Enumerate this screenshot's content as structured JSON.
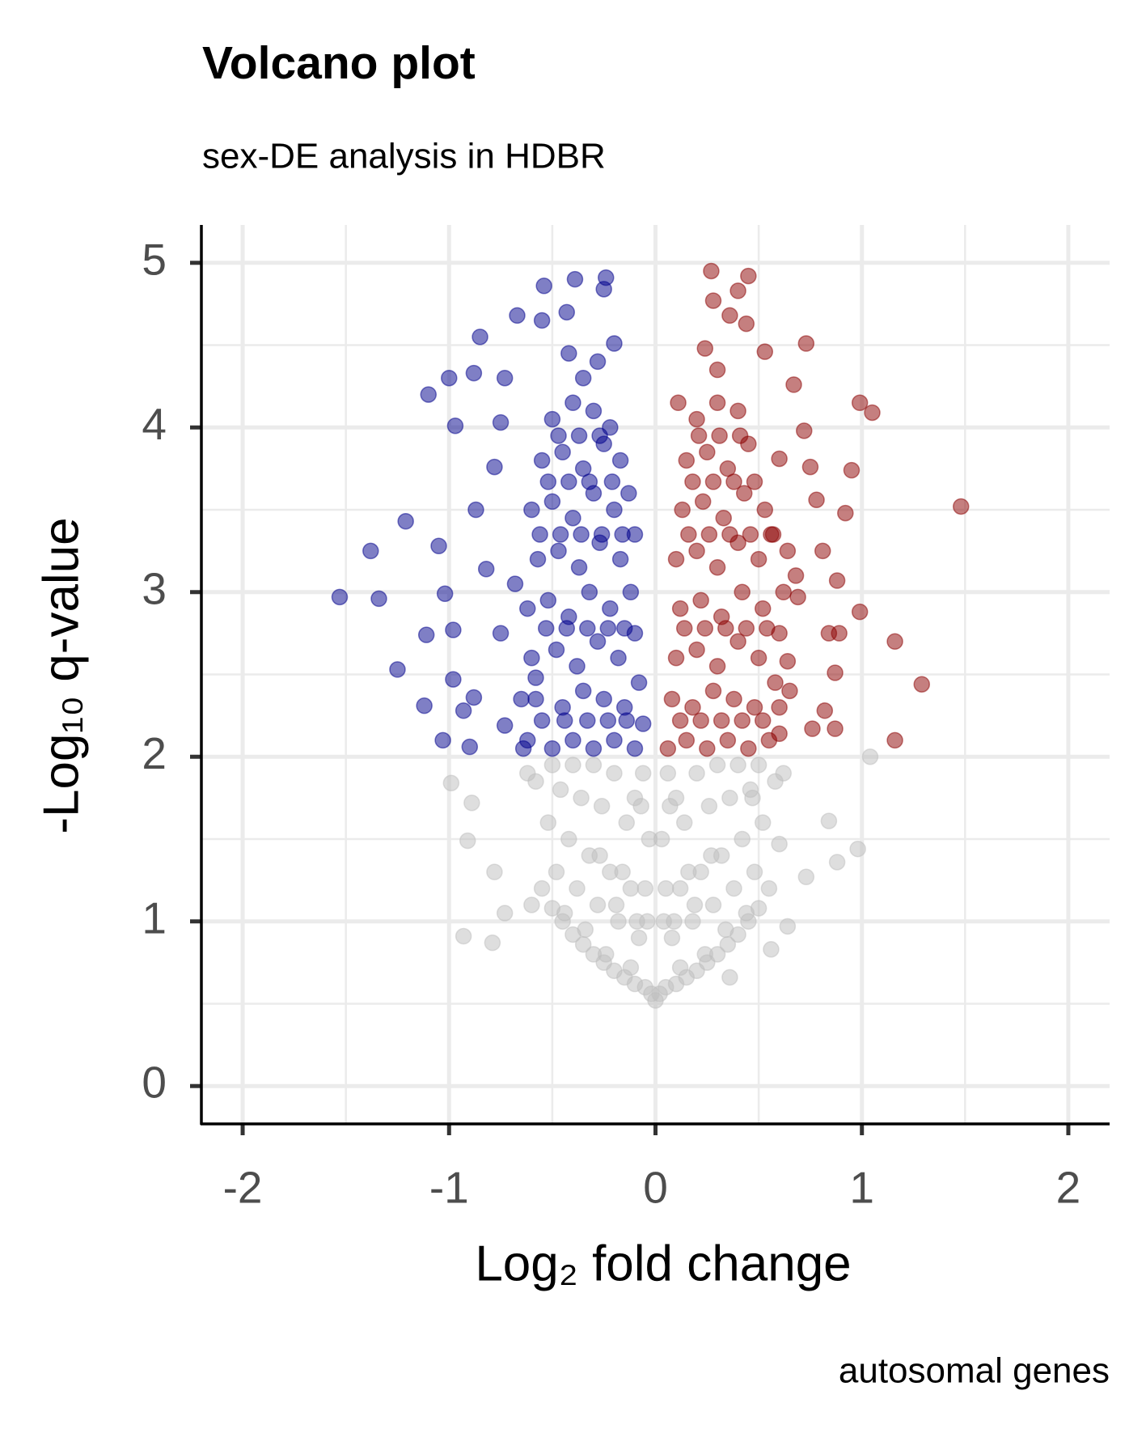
{
  "chart_data": {
    "type": "scatter",
    "title": "Volcano plot",
    "subtitle": "sex-DE analysis in HDBR",
    "x_label": "Log₂ fold change",
    "y_label": "-Log₁₀ q-value",
    "caption": "autosomal genes",
    "xlim": [
      -2.2,
      2.2
    ],
    "ylim": [
      -0.23,
      5.23
    ],
    "xticks": [
      -2,
      -1,
      0,
      1,
      2
    ],
    "yticks": [
      0,
      1,
      2,
      3,
      4,
      5
    ],
    "x_minor_grid": [
      -1.5,
      -0.5,
      0.5,
      1.5
    ],
    "y_minor_grid": [
      0.5,
      1.5,
      2.5,
      3.5,
      4.5
    ],
    "grid": true,
    "opacity": 0.5,
    "series": [
      {
        "color": "#BEBEBE",
        "x": [
          1.04,
          0.98,
          0.88,
          0.84,
          0.73,
          -0.78,
          -0.73,
          -0.79,
          -0.93,
          -0.99,
          -0.91,
          -0.89,
          -0.6,
          0.36,
          0.56,
          0.64,
          0.6,
          0.47,
          0,
          0.02,
          -0.02,
          0.05,
          -0.05,
          0.1,
          -0.1,
          0.15,
          -0.15,
          0.2,
          -0.2,
          0.25,
          -0.25,
          0.3,
          -0.3,
          0.35,
          -0.35,
          0.4,
          -0.4,
          0.45,
          -0.45,
          0.5,
          -0.5,
          0.55,
          -0.55,
          0.08,
          -0.08,
          0.18,
          -0.18,
          0.28,
          -0.28,
          0.38,
          -0.38,
          0.48,
          -0.48,
          0.12,
          -0.12,
          0.22,
          -0.22,
          0.32,
          -0.32,
          0.42,
          -0.42,
          0.52,
          -0.52,
          0.03,
          -0.03,
          0.14,
          -0.14,
          0.26,
          -0.26,
          0.36,
          -0.36,
          0.46,
          -0.46,
          0.58,
          -0.58,
          0.06,
          -0.06,
          0.2,
          -0.2,
          0.3,
          -0.3,
          0.4,
          -0.4,
          0.5,
          -0.5,
          0.62,
          -0.62,
          0.1,
          -0.1,
          0.24,
          -0.24,
          0.34,
          -0.34,
          0.44,
          -0.44,
          0.05,
          -0.05,
          0.16,
          -0.16,
          0.27,
          -0.27,
          0.09,
          -0.09,
          0.19,
          -0.19,
          0.04,
          -0.04,
          0.12,
          -0.12,
          0.07,
          -0.07
        ],
        "values": [
          2.0,
          1.44,
          1.36,
          1.61,
          1.27,
          1.3,
          1.05,
          0.87,
          0.91,
          1.84,
          1.49,
          1.72,
          1.1,
          0.66,
          0.83,
          0.97,
          1.47,
          1.75,
          0.52,
          0.56,
          0.56,
          0.6,
          0.6,
          0.62,
          0.62,
          0.66,
          0.66,
          0.7,
          0.7,
          0.75,
          0.75,
          0.8,
          0.8,
          0.86,
          0.86,
          0.92,
          0.92,
          1.0,
          1.0,
          1.08,
          1.08,
          1.2,
          1.2,
          0.9,
          0.9,
          1.0,
          1.0,
          1.1,
          1.1,
          1.2,
          1.2,
          1.3,
          1.3,
          1.2,
          1.2,
          1.3,
          1.3,
          1.4,
          1.4,
          1.5,
          1.5,
          1.6,
          1.6,
          1.5,
          1.5,
          1.6,
          1.6,
          1.7,
          1.7,
          1.75,
          1.75,
          1.8,
          1.8,
          1.85,
          1.85,
          1.9,
          1.9,
          1.9,
          1.9,
          1.95,
          1.95,
          1.95,
          1.95,
          1.95,
          1.95,
          1.9,
          1.9,
          1.75,
          1.75,
          0.8,
          0.8,
          0.95,
          0.95,
          1.05,
          1.05,
          1.2,
          1.2,
          1.3,
          1.3,
          1.4,
          1.4,
          1.0,
          1.0,
          1.1,
          1.1,
          1.0,
          1.0,
          0.72,
          0.72,
          1.7,
          1.7
        ]
      },
      {
        "color": "#00008B",
        "x": [
          -1.53,
          -1.38,
          -1.21,
          -1.34,
          -1.25,
          -1.12,
          -1.11,
          -1.03,
          -1.05,
          -1.02,
          -1.1,
          -1.0,
          -0.97,
          -0.88,
          -0.85,
          -0.98,
          -0.98,
          -0.93,
          -0.88,
          -0.9,
          -0.39,
          -0.24,
          -0.54,
          -0.67,
          -0.55,
          -0.43,
          -0.25,
          -0.2,
          -0.73,
          -0.75,
          -0.78,
          -0.87,
          -0.82,
          -0.75,
          -0.73,
          -0.64,
          -0.62,
          -0.5,
          -0.4,
          -0.3,
          -0.2,
          -0.1,
          -0.06,
          -0.58,
          -0.45,
          -0.35,
          -0.25,
          -0.15,
          -0.08,
          -0.6,
          -0.48,
          -0.38,
          -0.28,
          -0.18,
          -0.1,
          -0.62,
          -0.52,
          -0.42,
          -0.32,
          -0.22,
          -0.12,
          -0.57,
          -0.47,
          -0.37,
          -0.27,
          -0.17,
          -0.1,
          -0.6,
          -0.5,
          -0.4,
          -0.3,
          -0.2,
          -0.13,
          -0.55,
          -0.45,
          -0.35,
          -0.25,
          -0.17,
          -0.5,
          -0.4,
          -0.3,
          -0.22,
          -0.35,
          -0.28,
          -0.42,
          -0.55,
          -0.44,
          -0.33,
          -0.23,
          -0.14,
          -0.53,
          -0.43,
          -0.33,
          -0.23,
          -0.15,
          -0.56,
          -0.46,
          -0.36,
          -0.26,
          -0.16,
          -0.52,
          -0.42,
          -0.32,
          -0.21,
          -0.47,
          -0.37,
          -0.27,
          -0.58,
          -0.65,
          -0.68
        ],
        "values": [
          2.97,
          3.25,
          3.43,
          2.96,
          2.53,
          2.31,
          2.74,
          2.1,
          3.28,
          2.99,
          4.2,
          4.3,
          4.01,
          4.33,
          4.55,
          2.77,
          2.47,
          2.28,
          2.36,
          2.06,
          4.9,
          4.91,
          4.86,
          4.68,
          4.65,
          4.7,
          4.84,
          4.51,
          4.3,
          4.03,
          3.76,
          3.5,
          3.14,
          2.75,
          2.19,
          2.05,
          2.1,
          2.05,
          2.1,
          2.05,
          2.1,
          2.05,
          2.2,
          2.35,
          2.3,
          2.4,
          2.35,
          2.3,
          2.45,
          2.6,
          2.65,
          2.55,
          2.7,
          2.6,
          2.75,
          2.9,
          2.95,
          2.85,
          3.0,
          2.9,
          3.0,
          3.2,
          3.25,
          3.15,
          3.3,
          3.2,
          3.35,
          3.5,
          3.55,
          3.45,
          3.6,
          3.5,
          3.6,
          3.8,
          3.85,
          3.75,
          3.9,
          3.8,
          4.05,
          4.15,
          4.1,
          4.0,
          4.3,
          4.4,
          4.45,
          2.22,
          2.22,
          2.22,
          2.22,
          2.22,
          2.78,
          2.78,
          2.78,
          2.78,
          2.78,
          3.35,
          3.35,
          3.35,
          3.35,
          3.35,
          3.67,
          3.67,
          3.67,
          3.67,
          3.95,
          3.95,
          3.95,
          2.48,
          2.35,
          3.05
        ]
      },
      {
        "color": "#8B0000",
        "x": [
          1.48,
          0.99,
          1.05,
          0.95,
          0.92,
          1.16,
          1.29,
          1.16,
          0.99,
          0.88,
          0.81,
          0.87,
          0.87,
          0.73,
          0.72,
          0.67,
          0.75,
          0.78,
          0.82,
          0.76,
          0.84,
          0.89,
          0.27,
          0.45,
          0.28,
          0.4,
          0.36,
          0.44,
          0.53,
          0.24,
          0.11,
          0.6,
          0.64,
          0.69,
          0.64,
          0.6,
          0.6,
          0.06,
          0.15,
          0.25,
          0.35,
          0.45,
          0.55,
          0.08,
          0.18,
          0.28,
          0.38,
          0.48,
          0.58,
          0.1,
          0.2,
          0.3,
          0.4,
          0.5,
          0.6,
          0.12,
          0.22,
          0.32,
          0.42,
          0.52,
          0.62,
          0.1,
          0.2,
          0.3,
          0.4,
          0.5,
          0.57,
          0.13,
          0.23,
          0.33,
          0.43,
          0.53,
          0.15,
          0.25,
          0.35,
          0.45,
          0.2,
          0.3,
          0.4,
          0.3,
          0.12,
          0.22,
          0.32,
          0.42,
          0.52,
          0.14,
          0.24,
          0.34,
          0.44,
          0.54,
          0.16,
          0.26,
          0.36,
          0.46,
          0.56,
          0.18,
          0.28,
          0.38,
          0.48,
          0.21,
          0.31,
          0.41,
          0.65,
          0.68
        ],
        "values": [
          3.52,
          4.15,
          4.09,
          3.74,
          3.48,
          2.7,
          2.44,
          2.1,
          2.88,
          3.07,
          3.25,
          2.17,
          2.51,
          4.51,
          3.98,
          4.26,
          3.76,
          3.56,
          2.28,
          2.17,
          2.75,
          2.75,
          4.95,
          4.92,
          4.77,
          4.83,
          4.68,
          4.63,
          4.46,
          4.48,
          4.15,
          3.81,
          3.25,
          2.97,
          2.58,
          2.3,
          2.14,
          2.05,
          2.1,
          2.05,
          2.1,
          2.05,
          2.1,
          2.35,
          2.3,
          2.4,
          2.35,
          2.3,
          2.45,
          2.6,
          2.65,
          2.55,
          2.7,
          2.6,
          2.75,
          2.9,
          2.95,
          2.85,
          3.0,
          2.9,
          3.0,
          3.2,
          3.25,
          3.15,
          3.3,
          3.2,
          3.35,
          3.5,
          3.55,
          3.45,
          3.6,
          3.5,
          3.8,
          3.85,
          3.75,
          3.9,
          4.05,
          4.15,
          4.1,
          4.35,
          2.22,
          2.22,
          2.22,
          2.22,
          2.22,
          2.78,
          2.78,
          2.78,
          2.78,
          2.78,
          3.35,
          3.35,
          3.35,
          3.35,
          3.35,
          3.67,
          3.67,
          3.67,
          3.67,
          3.95,
          3.95,
          3.95,
          2.4,
          3.1
        ]
      }
    ]
  }
}
